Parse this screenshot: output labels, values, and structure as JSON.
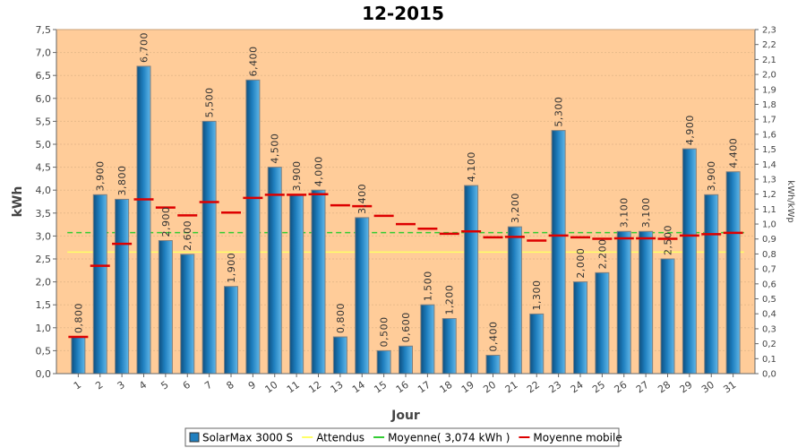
{
  "chart_data": {
    "type": "bar",
    "title": "12-2015",
    "xlabel": "Jour",
    "ylabel": "kWh",
    "y2label": "kWh/kWp",
    "ylim": [
      0,
      7.5
    ],
    "ystep": 0.5,
    "y2lim": [
      0,
      2.3
    ],
    "y2step": 0.1,
    "categories": [
      "1",
      "2",
      "3",
      "4",
      "5",
      "6",
      "7",
      "8",
      "9",
      "10",
      "11",
      "12",
      "13",
      "14",
      "15",
      "16",
      "17",
      "18",
      "19",
      "20",
      "21",
      "22",
      "23",
      "24",
      "25",
      "26",
      "27",
      "28",
      "29",
      "30",
      "31"
    ],
    "series": [
      {
        "name": "SolarMax 3000 S",
        "type": "bar",
        "color": "#1f7fbf",
        "values": [
          0.8,
          3.9,
          3.8,
          6.7,
          2.9,
          2.6,
          5.5,
          1.9,
          6.4,
          4.5,
          3.9,
          4.0,
          0.8,
          3.4,
          0.5,
          0.6,
          1.5,
          1.2,
          4.1,
          0.4,
          3.2,
          1.3,
          5.3,
          2.0,
          2.2,
          3.1,
          3.1,
          2.5,
          4.9,
          3.9,
          4.4
        ],
        "labels": [
          "0,800",
          "3,900",
          "3,800",
          "6,700",
          "2,900",
          "2,600",
          "5,500",
          "1,900",
          "6,400",
          "4,500",
          "3,900",
          "4,000",
          "0,800",
          "3,400",
          "0,500",
          "0,600",
          "1,500",
          "1,200",
          "4,100",
          "0,400",
          "3,200",
          "1,300",
          "5,300",
          "2,000",
          "2,200",
          "3,100",
          "3,100",
          "2,500",
          "4,900",
          "3,900",
          "4,400"
        ]
      },
      {
        "name": "Attendus",
        "type": "line",
        "color": "#ffff66",
        "value": 2.65
      },
      {
        "name": "Moyenne( 3,074 kWh )",
        "type": "line",
        "color": "#33cc33",
        "value": 3.074
      },
      {
        "name": "Moyenne mobile",
        "type": "step",
        "color": "#dd0000",
        "values": [
          0.8,
          2.35,
          2.83,
          3.8,
          3.62,
          3.45,
          3.74,
          3.51,
          3.83,
          3.9,
          3.9,
          3.91,
          3.67,
          3.65,
          3.44,
          3.26,
          3.16,
          3.05,
          3.1,
          2.97,
          2.98,
          2.9,
          3.01,
          2.97,
          2.94,
          2.95,
          2.95,
          2.94,
          3.01,
          3.04,
          3.07
        ]
      }
    ],
    "legend_position": "bottom",
    "grid": true,
    "plot_background": "#ffcc99"
  }
}
